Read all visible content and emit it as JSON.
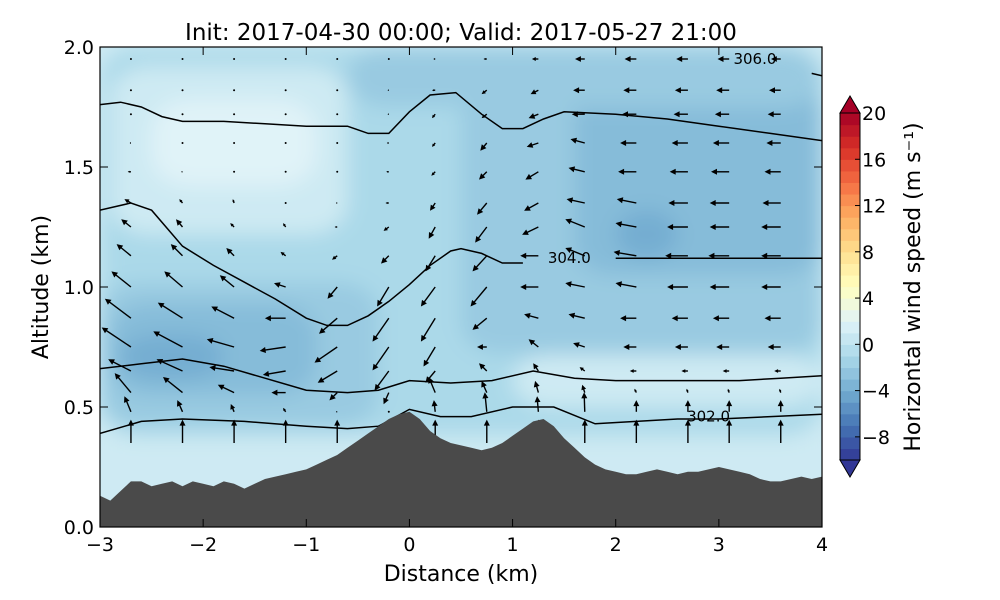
{
  "chart_data": {
    "type": "heatmap",
    "title": "Init: 2017-04-30 00:00; Valid: 2017-05-27 21:00",
    "xlabel": "Distance (km)",
    "ylabel": "Altitude (km)",
    "xlim": [
      -3,
      4
    ],
    "ylim": [
      0,
      2.0
    ],
    "x_ticks": [
      -3,
      -2,
      -1,
      0,
      1,
      2,
      3,
      4
    ],
    "x_tick_labels": [
      "−3",
      "−2",
      "−1",
      "0",
      "1",
      "2",
      "3",
      "4"
    ],
    "y_ticks": [
      0.0,
      0.5,
      1.0,
      1.5,
      2.0
    ],
    "y_tick_labels": [
      "0.0",
      "0.5",
      "1.0",
      "1.5",
      "2.0"
    ],
    "colorbar": {
      "label": "Horizontal wind speed (m s⁻¹)",
      "range": [
        -10,
        20
      ],
      "step": 1,
      "ticks": [
        -8,
        -4,
        0,
        4,
        8,
        12,
        16,
        20
      ],
      "tick_labels": [
        "−8",
        "−4",
        "0",
        "4",
        "8",
        "12",
        "16",
        "20"
      ],
      "extend": "both",
      "colormap": "RdYlBu_r",
      "stops": [
        "#313695",
        "#4575b4",
        "#74add1",
        "#abd9e9",
        "#e0f3f8",
        "#ffffbf",
        "#fee090",
        "#fdae61",
        "#f46d43",
        "#d73027",
        "#a50026"
      ]
    },
    "terrain": {
      "color": "#4a4a4a",
      "x": [
        -3.0,
        -2.9,
        -2.8,
        -2.7,
        -2.6,
        -2.5,
        -2.4,
        -2.3,
        -2.2,
        -2.1,
        -2.0,
        -1.9,
        -1.8,
        -1.7,
        -1.6,
        -1.5,
        -1.4,
        -1.3,
        -1.2,
        -1.1,
        -1.0,
        -0.9,
        -0.8,
        -0.7,
        -0.6,
        -0.5,
        -0.4,
        -0.3,
        -0.2,
        -0.1,
        0.0,
        0.1,
        0.2,
        0.3,
        0.4,
        0.5,
        0.6,
        0.7,
        0.8,
        0.9,
        1.0,
        1.1,
        1.2,
        1.3,
        1.4,
        1.5,
        1.6,
        1.7,
        1.8,
        1.9,
        2.0,
        2.1,
        2.2,
        2.3,
        2.4,
        2.5,
        2.6,
        2.7,
        2.8,
        2.9,
        3.0,
        3.1,
        3.2,
        3.3,
        3.4,
        3.5,
        3.6,
        3.7,
        3.8,
        3.9,
        4.0
      ],
      "y": [
        0.13,
        0.11,
        0.15,
        0.19,
        0.19,
        0.17,
        0.18,
        0.19,
        0.17,
        0.19,
        0.18,
        0.17,
        0.19,
        0.18,
        0.16,
        0.18,
        0.2,
        0.21,
        0.22,
        0.23,
        0.24,
        0.26,
        0.28,
        0.3,
        0.33,
        0.36,
        0.39,
        0.42,
        0.45,
        0.47,
        0.48,
        0.45,
        0.4,
        0.37,
        0.35,
        0.34,
        0.33,
        0.32,
        0.33,
        0.35,
        0.38,
        0.41,
        0.44,
        0.45,
        0.42,
        0.37,
        0.33,
        0.29,
        0.26,
        0.24,
        0.23,
        0.22,
        0.22,
        0.23,
        0.24,
        0.23,
        0.22,
        0.23,
        0.23,
        0.24,
        0.25,
        0.24,
        0.23,
        0.22,
        0.2,
        0.19,
        0.19,
        0.2,
        0.21,
        0.2,
        0.21
      ]
    },
    "isentropes": [
      {
        "x": [
          -3.0,
          -2.6,
          -2.2,
          -1.6,
          -1.0,
          -0.6,
          -0.3,
          0.0,
          0.3,
          0.6,
          1.0,
          1.4,
          1.8,
          2.2,
          2.6,
          3.0,
          3.5,
          4.0
        ],
        "y": [
          0.39,
          0.44,
          0.45,
          0.44,
          0.42,
          0.41,
          0.42,
          0.49,
          0.46,
          0.46,
          0.5,
          0.5,
          0.43,
          0.44,
          0.45,
          0.45,
          0.46,
          0.47
        ],
        "label": "302.0",
        "label_x": 2.9,
        "label_y": 0.46
      },
      {
        "x": [
          -3.0,
          -2.6,
          -2.2,
          -1.8,
          -1.4,
          -1.0,
          -0.6,
          -0.3,
          0.0,
          0.4,
          0.8,
          1.2,
          1.6,
          2.0,
          2.4,
          2.8,
          3.2,
          3.6,
          4.0
        ],
        "y": [
          0.66,
          0.68,
          0.7,
          0.67,
          0.62,
          0.57,
          0.56,
          0.57,
          0.61,
          0.6,
          0.61,
          0.65,
          0.62,
          0.61,
          0.61,
          0.61,
          0.61,
          0.62,
          0.63
        ]
      },
      {
        "x": [
          -3.0,
          -2.7,
          -2.5,
          -2.2,
          -1.9,
          -1.6,
          -1.3,
          -1.0,
          -0.8,
          -0.6,
          -0.4,
          -0.2,
          0.0,
          0.2,
          0.4,
          0.5,
          0.7,
          0.9,
          1.1
        ],
        "y": [
          1.32,
          1.35,
          1.32,
          1.17,
          1.09,
          1.02,
          0.95,
          0.87,
          0.84,
          0.84,
          0.88,
          0.94,
          1.01,
          1.09,
          1.15,
          1.16,
          1.14,
          1.1,
          1.1
        ]
      },
      {
        "x": [
          2.0,
          2.4,
          2.8,
          3.2,
          3.6,
          4.0
        ],
        "y": [
          1.12,
          1.12,
          1.12,
          1.12,
          1.12,
          1.12
        ],
        "label": "304.0",
        "label_x": 1.55,
        "label_y": 1.12
      },
      {
        "x": [
          -3.0,
          -2.8,
          -2.6,
          -2.4,
          -2.2,
          -1.8,
          -1.4,
          -1.0,
          -0.6,
          -0.4,
          -0.2,
          0.0,
          0.2,
          0.45,
          0.7,
          0.9,
          1.1,
          1.3,
          1.5,
          2.0,
          2.5,
          3.0,
          3.5,
          4.0
        ],
        "y": [
          1.76,
          1.77,
          1.75,
          1.71,
          1.69,
          1.69,
          1.68,
          1.67,
          1.67,
          1.64,
          1.64,
          1.73,
          1.8,
          1.81,
          1.72,
          1.66,
          1.66,
          1.7,
          1.73,
          1.72,
          1.7,
          1.67,
          1.64,
          1.61
        ]
      },
      {
        "x": [
          3.9,
          4.0
        ],
        "y": [
          1.89,
          1.88
        ],
        "label": "306.0",
        "label_x": 3.35,
        "label_y": 1.95
      }
    ],
    "wind_regions": [
      {
        "value": 3,
        "x": -3.0,
        "y": 0.0,
        "w": 7.0,
        "h": 0.55
      },
      {
        "value": 1,
        "x": -3.0,
        "y": 0.0,
        "w": 7.0,
        "h": 2.0
      },
      {
        "value": -1,
        "x": -3.0,
        "y": 0.38,
        "w": 7.0,
        "h": 1.62
      },
      {
        "value": 1,
        "x": -2.9,
        "y": 1.22,
        "w": 2.3,
        "h": 0.7
      },
      {
        "value": 2,
        "x": -2.5,
        "y": 1.42,
        "w": 1.6,
        "h": 0.36
      },
      {
        "value": -2,
        "x": -3.0,
        "y": 0.42,
        "w": 2.7,
        "h": 0.6
      },
      {
        "value": -3,
        "x": -2.9,
        "y": 0.55,
        "w": 2.0,
        "h": 0.38
      },
      {
        "value": -4,
        "x": -2.8,
        "y": 0.62,
        "w": 1.0,
        "h": 0.18
      },
      {
        "value": -2,
        "x": 0.5,
        "y": 0.72,
        "w": 3.5,
        "h": 1.18
      },
      {
        "value": -3,
        "x": 1.6,
        "y": 1.05,
        "w": 2.4,
        "h": 0.8
      },
      {
        "value": -4,
        "x": 2.0,
        "y": 1.12,
        "w": 0.6,
        "h": 0.2
      },
      {
        "value": -2,
        "x": -0.6,
        "y": 1.75,
        "w": 4.6,
        "h": 0.25
      },
      {
        "value": 1,
        "x": 1.0,
        "y": 0.5,
        "w": 3.0,
        "h": 0.22
      }
    ],
    "wind_vectors": {
      "color": "#000000",
      "x": [
        -2.7,
        -2.2,
        -1.7,
        -1.2,
        -0.7,
        -0.2,
        0.25,
        0.75,
        1.25,
        1.7,
        2.2,
        2.7,
        3.1,
        3.6
      ],
      "y": [
        0.35,
        0.48,
        0.56,
        0.65,
        0.75,
        0.87,
        1.0,
        1.13,
        1.25,
        1.35,
        1.48,
        1.6,
        1.72,
        1.82,
        1.95
      ],
      "u": [
        [
          0,
          0,
          0,
          0,
          0,
          0,
          0,
          0,
          0,
          0,
          0,
          0,
          0,
          0
        ],
        [
          -1.0,
          -0.8,
          -0.5,
          -0.4,
          -0.2,
          0,
          -0.2,
          -0.3,
          -0.2,
          -0.1,
          0,
          0,
          0,
          0
        ],
        [
          -2.5,
          -3.0,
          -2.5,
          -2.2,
          -1.2,
          -0.8,
          -1.0,
          -0.8,
          -0.5,
          -0.4,
          -0.3,
          -0.2,
          -0.2,
          -0.2
        ],
        [
          -3.5,
          -4.0,
          -3.8,
          -3.5,
          -3.0,
          -2.2,
          -1.5,
          -1.2,
          -0.8,
          -0.8,
          -1.0,
          -1.0,
          -1.0,
          -1.0
        ],
        [
          -4.5,
          -4.5,
          -4.2,
          -4.0,
          -3.5,
          -2.5,
          -1.8,
          -1.5,
          -1.5,
          -1.8,
          -2.0,
          -2.0,
          -2.0,
          -2.0
        ],
        [
          -4.0,
          -3.8,
          -3.5,
          -3.2,
          -2.8,
          -2.5,
          -2.2,
          -2.2,
          -2.2,
          -2.5,
          -2.5,
          -2.5,
          -2.5,
          -2.5
        ],
        [
          -3.0,
          -2.8,
          -2.2,
          -1.8,
          -1.5,
          -1.8,
          -2.2,
          -2.5,
          -2.8,
          -3.0,
          -3.2,
          -3.2,
          -3.0,
          -3.0
        ],
        [
          -2.2,
          -1.8,
          -1.2,
          -0.8,
          -0.8,
          -1.2,
          -1.5,
          -2.2,
          -2.8,
          -3.0,
          -3.5,
          -3.5,
          -3.2,
          -3.0
        ],
        [
          -1.5,
          -1.0,
          -0.6,
          -0.4,
          -0.4,
          -0.8,
          -1.0,
          -1.8,
          -2.5,
          -3.0,
          -3.2,
          -3.2,
          -3.0,
          -3.0
        ],
        [
          -1.0,
          -0.5,
          -0.2,
          -0.1,
          -0.2,
          -0.5,
          -0.8,
          -1.5,
          -2.2,
          -2.8,
          -3.0,
          -3.0,
          -3.0,
          -2.8
        ],
        [
          -0.5,
          -0.2,
          0,
          0,
          -0.1,
          -0.4,
          -0.6,
          -1.2,
          -2.0,
          -2.5,
          -2.8,
          -2.8,
          -2.8,
          -2.5
        ],
        [
          -0.2,
          0,
          0,
          0,
          0,
          -0.3,
          -0.5,
          -1.0,
          -1.8,
          -2.2,
          -2.5,
          -2.5,
          -2.5,
          -2.2
        ],
        [
          -0.1,
          0,
          0,
          0,
          0,
          -0.2,
          -0.5,
          -0.8,
          -1.5,
          -2.0,
          -2.2,
          -2.2,
          -2.2,
          -2.0
        ],
        [
          0,
          0,
          0,
          0,
          0,
          -0.2,
          -0.5,
          -0.8,
          -1.2,
          -1.8,
          -2.0,
          -2.0,
          -2.0,
          -1.8
        ],
        [
          0,
          0,
          0,
          0,
          0,
          0,
          -0.3,
          -0.5,
          -1.0,
          -1.5,
          -1.8,
          -1.8,
          -1.8,
          -1.5
        ]
      ],
      "w": [
        [
          0.6,
          0.6,
          0.6,
          0.6,
          0.6,
          0,
          0.6,
          0.6,
          0.6,
          0.6,
          0.6,
          0.6,
          0.6,
          0.6
        ],
        [
          0.4,
          0.3,
          0.2,
          0.1,
          0,
          0,
          0.3,
          0.5,
          0.4,
          0.5,
          0.3,
          0.3,
          0.3,
          0.3
        ],
        [
          0.5,
          0.4,
          0.2,
          0,
          -0.2,
          -0.3,
          0.4,
          0.3,
          0.3,
          0.2,
          0.1,
          0.1,
          0.1,
          0.1
        ],
        [
          0.3,
          0.3,
          0.1,
          -0.1,
          -0.3,
          -0.5,
          -0.3,
          0.2,
          0.2,
          0.1,
          0,
          0,
          0,
          0
        ],
        [
          0.5,
          0.4,
          0.2,
          -0.1,
          -0.4,
          -0.6,
          -0.5,
          0,
          0.2,
          0.1,
          0,
          0,
          0,
          0
        ],
        [
          0.5,
          0.4,
          0.3,
          0,
          -0.4,
          -0.6,
          -0.6,
          -0.3,
          0.1,
          0.1,
          0,
          0,
          0,
          0
        ],
        [
          0.4,
          0.4,
          0.3,
          0.1,
          -0.3,
          -0.5,
          -0.5,
          -0.5,
          0,
          0.1,
          0.1,
          0,
          0,
          0
        ],
        [
          0.3,
          0.3,
          0.2,
          0.1,
          -0.1,
          -0.2,
          -0.4,
          -0.4,
          0,
          0.2,
          0.1,
          0,
          0,
          0
        ],
        [
          0.2,
          0.2,
          0.1,
          0.1,
          0,
          -0.1,
          -0.3,
          -0.4,
          -0.2,
          0.2,
          0.1,
          0,
          0,
          0
        ],
        [
          0.1,
          0.1,
          0.1,
          0,
          0,
          0,
          -0.2,
          -0.3,
          -0.2,
          0.1,
          0.1,
          0,
          0,
          0
        ],
        [
          0,
          0,
          0,
          0,
          0,
          0,
          -0.1,
          -0.2,
          -0.2,
          0.1,
          0,
          0,
          0,
          0
        ],
        [
          0,
          0,
          0,
          0,
          0,
          0,
          -0.1,
          -0.2,
          -0.1,
          0.1,
          0,
          0,
          0,
          0
        ],
        [
          0,
          0,
          0,
          0,
          0,
          0,
          -0.1,
          -0.1,
          -0.1,
          0,
          0,
          0,
          0,
          0
        ],
        [
          0,
          0,
          0,
          0,
          0,
          0,
          0,
          -0.1,
          -0.1,
          0,
          0,
          0,
          0,
          0
        ],
        [
          0,
          0,
          0,
          0,
          0,
          0,
          0,
          0,
          0,
          0,
          0,
          0,
          0,
          0
        ]
      ]
    }
  }
}
